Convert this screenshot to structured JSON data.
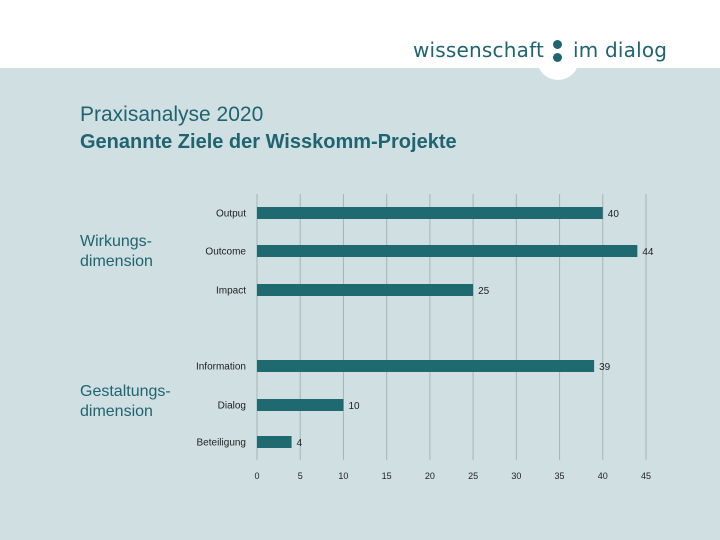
{
  "header": {
    "logo_left": "wissenschaft",
    "logo_right": "im dialog",
    "brand_color": "#1f6470"
  },
  "title": "Praxisanalyse 2020",
  "subtitle": "Genannte Ziele der Wisskomm-Projekte",
  "groups": [
    {
      "line1": "Wirkungs-",
      "line2": "dimension"
    },
    {
      "line1": "Gestaltungs-",
      "line2": "dimension"
    }
  ],
  "chart_data": {
    "type": "bar",
    "orientation": "horizontal",
    "categories": [
      "Output",
      "Outcome",
      "Impact",
      "Information",
      "Dialog",
      "Beteiligung"
    ],
    "values": [
      40,
      44,
      25,
      39,
      10,
      4
    ],
    "xlim": [
      0,
      45
    ],
    "xticks": [
      0,
      5,
      10,
      15,
      20,
      25,
      30,
      35,
      40,
      45
    ],
    "grid": true,
    "bar_color": "#1f6a70",
    "background": "#cfdfe2"
  }
}
